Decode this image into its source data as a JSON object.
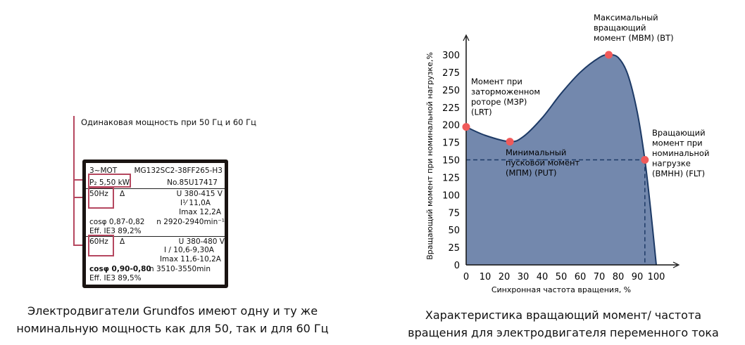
{
  "left": {
    "annotation": "Одинаковая мощность при 50 Гц и 60 Гц",
    "plate": {
      "type": "3~MOT",
      "model": "MG132SC2-38FF265-H3",
      "power": "P₂ 5,50 kW",
      "serial": "No.85U17417",
      "hz50": {
        "freq": "50Hz",
        "conn": "Δ",
        "voltage": "U 380-415 V",
        "current": "I¹⁄ 11,0A",
        "imax": "Imax 12,2A",
        "cos": "cosφ 0,87-0,82",
        "speed": "n 2920-2940min⁻¹",
        "eff": "Eff. IE3 89,2%"
      },
      "hz60": {
        "freq": "60Hz",
        "conn": "Δ",
        "voltage": "U 380-480 V",
        "current": "I / 10,6-9,30A",
        "imax": "Imax 11,6-10,2A",
        "cos": "cosφ 0,90-0,80",
        "speed": "n 3510-3550min",
        "eff": "Eff. IE3 89,5%"
      }
    },
    "caption_line1": "Электродвигатели Grundfos имеют одну и ту же",
    "caption_line2": "номинальную мощность как для 50, так и для 60 Гц"
  },
  "right": {
    "caption_line1": "Характеристика вращающий момент/ частота",
    "caption_line2": "вращения для электродвигателя переменного тока"
  },
  "colors": {
    "fill": "#7388ad",
    "line": "#1d3a66",
    "point": "#f05a5a",
    "accent": "#b5475f"
  },
  "chart_data": {
    "type": "area",
    "xlabel": "Синхронная частота вращения, %",
    "ylabel": "Вращающий момент при номинальной нагрузке,%",
    "xlim": [
      0,
      100
    ],
    "ylim": [
      0,
      300
    ],
    "xticks": [
      0,
      10,
      20,
      30,
      40,
      50,
      60,
      70,
      80,
      90,
      100
    ],
    "yticks": [
      0,
      25,
      50,
      75,
      100,
      125,
      150,
      175,
      200,
      225,
      250,
      275,
      300
    ],
    "x": [
      0,
      10,
      23,
      30,
      40,
      50,
      60,
      70,
      75,
      80,
      85,
      90,
      94,
      97,
      100
    ],
    "y": [
      197,
      185,
      176,
      183,
      210,
      245,
      275,
      296,
      300,
      296,
      272,
      218,
      150,
      80,
      0
    ],
    "reference": {
      "x": 94,
      "y": 150
    },
    "points": [
      {
        "x": 0,
        "y": 197,
        "label": [
          "Момент при",
          "заторможенном",
          "роторе (МЗР)",
          "(LRT)"
        ]
      },
      {
        "x": 23,
        "y": 176,
        "label": [
          "Минимальный",
          "пусковой момент",
          "(МПМ) (PUT)"
        ]
      },
      {
        "x": 75,
        "y": 300,
        "label": [
          "Максимальный",
          "вращающий",
          "момент (МВМ) (BT)"
        ]
      },
      {
        "x": 94,
        "y": 150,
        "label": [
          "Вращающий",
          "момент при",
          "номинальной",
          "нагрузке",
          "(ВМНН) (FLT)"
        ]
      }
    ]
  }
}
